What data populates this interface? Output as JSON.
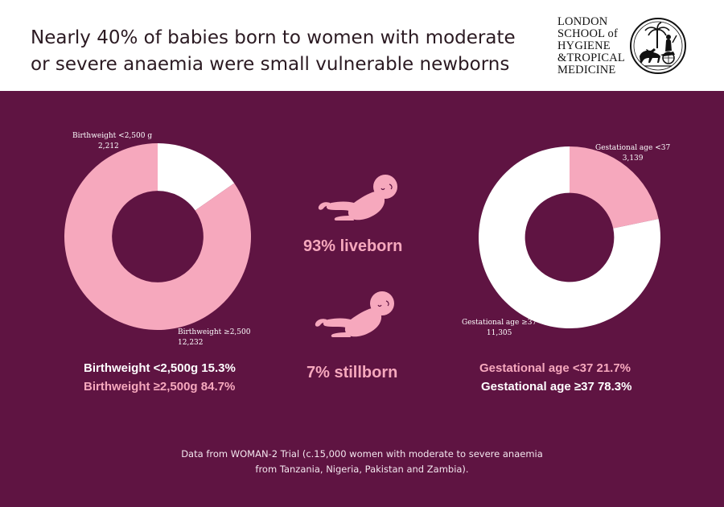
{
  "header": {
    "title": "Nearly 40% of babies born to women with moderate or severe anaemia were small vulnerable newborns",
    "logo_lines": [
      "LONDON",
      "SCHOOL of",
      "HYGIENE",
      "&TROPICAL",
      "MEDICINE"
    ]
  },
  "colors": {
    "panel": "#5f1442",
    "pink": "#f6a8bd",
    "white": "#ffffff"
  },
  "chart_data": [
    {
      "type": "pie",
      "donut": true,
      "title": "",
      "slices": [
        {
          "name": "Birthweight <2,500 g",
          "value": 2212,
          "color": "#ffffff"
        },
        {
          "name": "Birthweight ≥2,500",
          "value": 12232,
          "color": "#f6a8bd"
        }
      ],
      "labels": {
        "low": {
          "name": "Birthweight <2,500 g",
          "value": "2,212"
        },
        "high": {
          "name": "Birthweight ≥2,500",
          "value": "12,232"
        }
      },
      "legend": [
        "Birthweight <2,500g 15.3%",
        "Birthweight ≥2,500g 84.7%"
      ]
    },
    {
      "type": "pie",
      "donut": true,
      "title": "",
      "slices": [
        {
          "name": "Gestational age <37",
          "value": 3139,
          "color": "#f6a8bd"
        },
        {
          "name": "Gestational age ≥37",
          "value": 11305,
          "color": "#ffffff"
        }
      ],
      "labels": {
        "low": {
          "name": "Gestational age <37",
          "value": "3,139"
        },
        "high": {
          "name": "Gestational age ≥37",
          "value": "11,305"
        }
      },
      "legend": [
        "Gestational age <37 21.7%",
        "Gestational age ≥37 78.3%"
      ]
    }
  ],
  "middle": {
    "liveborn": "93% liveborn",
    "stillborn": "7% stillborn"
  },
  "footnote": {
    "line1": "Data from WOMAN-2 Trial (c.15,000 women with moderate to severe anaemia",
    "line2": "from Tanzania, Nigeria, Pakistan and Zambia)."
  }
}
